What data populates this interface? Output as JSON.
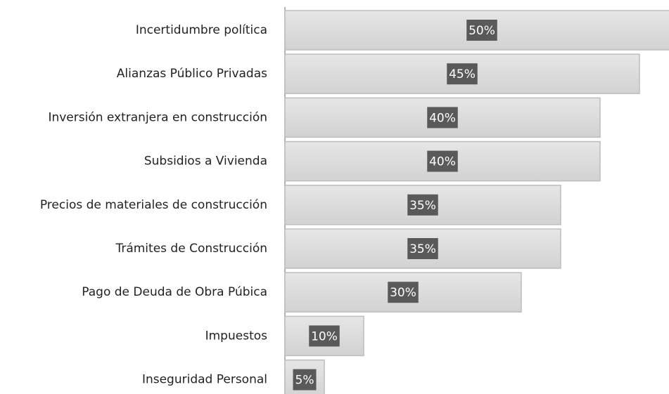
{
  "chart_data": {
    "type": "bar",
    "orientation": "horizontal",
    "categories": [
      "Incertidumbre política",
      "Alianzas Público Privadas",
      "Inversión extranjera en construcción",
      "Subsidios a Vivienda",
      "Precios de materiales de construcción",
      "Trámites de Construcción",
      "Pago de Deuda de Obra Púbica",
      "Impuestos",
      "Inseguridad Personal"
    ],
    "values": [
      50,
      45,
      40,
      40,
      35,
      35,
      30,
      10,
      5
    ],
    "value_labels": [
      "50%",
      "45%",
      "40%",
      "40%",
      "35%",
      "35%",
      "30%",
      "10%",
      "5%"
    ],
    "color": "#d9d9d9",
    "label_box_color": "#595959",
    "xlim": [
      0,
      50
    ]
  }
}
